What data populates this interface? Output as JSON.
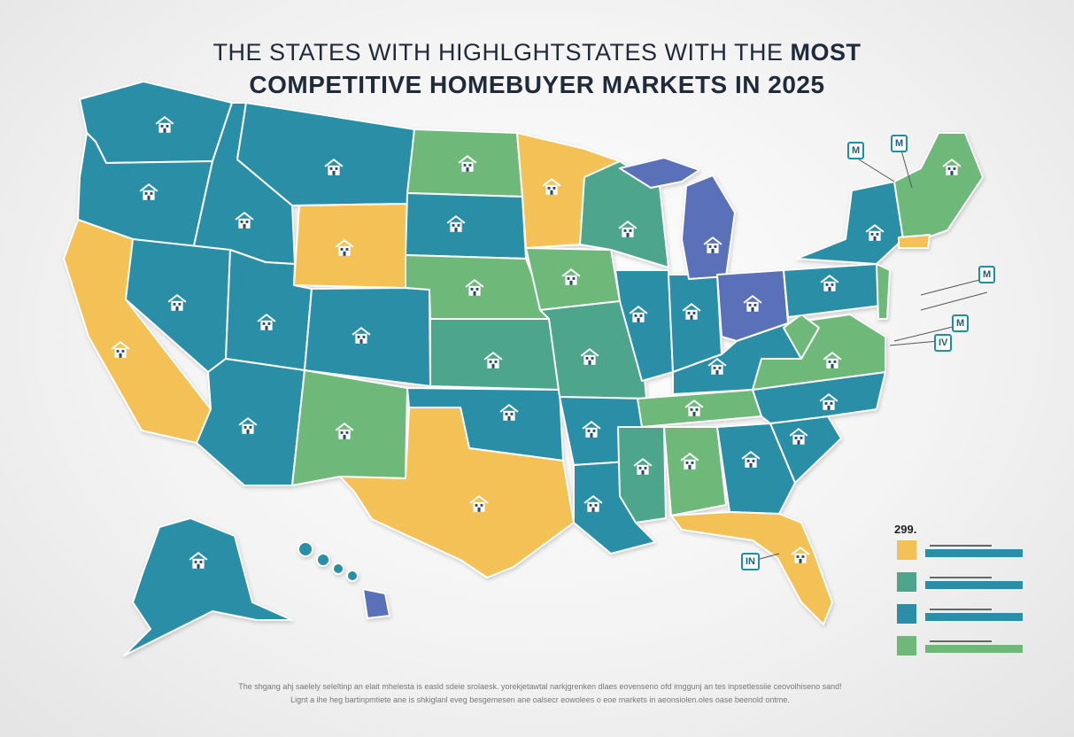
{
  "title": {
    "line1_prefix": "THE STATES WITH HIGHLGHTSTATES WITH THE ",
    "line1_bold": "MOST",
    "line2": "COMPETITIVE HOMEBUYER  MARKETS IN 2025"
  },
  "palette": {
    "teal": "#2a8fa6",
    "green": "#6eb87a",
    "sea": "#4ea58c",
    "yellow": "#f3c155",
    "purple": "#5a6fb8",
    "border": "#ffffff"
  },
  "map": {
    "icon": "house-icon",
    "callouts": [
      "M",
      "M",
      "M",
      "M",
      "IV",
      "IN"
    ]
  },
  "legend": {
    "value": "299.",
    "items": [
      {
        "color": "#f3c155",
        "bar_color": "#2a8fa6"
      },
      {
        "color": "#4ea58c",
        "bar_color": "#2a8fa6"
      },
      {
        "color": "#2a8fa6",
        "bar_color": "#2a8fa6"
      },
      {
        "color": "#6eb87a",
        "bar_color": "#6eb87a"
      }
    ]
  },
  "footer": {
    "line1": "The shgang ahj saelely seleltinp an elait mhelesta is easld sdeie srolaesk. yorekjetawtal narkjgrenken dlaes eovenseno ofd imggunj an tes inpsetlessiie ceovolhiseno sand!",
    "line2": "Lignt a ihe heg bartinpmtiete ane is shkiglanl eveg besgemesen ane oalsecr eowolees o eoe markets in aeonsiolen.oles oase beenold ontme."
  }
}
